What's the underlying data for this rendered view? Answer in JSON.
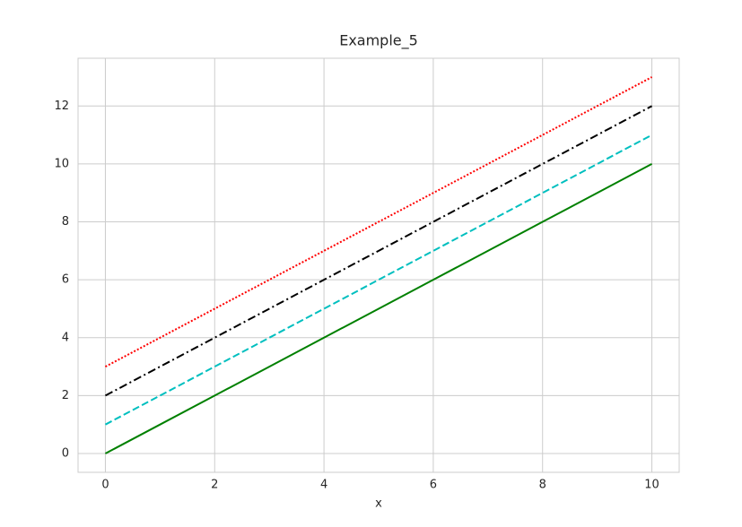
{
  "chart_data": {
    "type": "line",
    "title": "Example_5",
    "x_label": "x",
    "x": [
      0,
      1,
      2,
      3,
      4,
      5,
      6,
      7,
      8,
      9,
      10
    ],
    "series": [
      {
        "color": "#008000",
        "linestyle": "solid",
        "values": [
          0,
          1,
          2,
          3,
          4,
          5,
          6,
          7,
          8,
          9,
          10
        ]
      },
      {
        "color": "#00bfbf",
        "linestyle": "dashed",
        "values": [
          1,
          2,
          3,
          4,
          5,
          6,
          7,
          8,
          9,
          10,
          11
        ]
      },
      {
        "color": "#000000",
        "linestyle": "dashdot",
        "values": [
          2,
          3,
          4,
          5,
          6,
          7,
          8,
          9,
          10,
          11,
          12
        ]
      },
      {
        "color": "#ff0000",
        "linestyle": "dotted",
        "values": [
          3,
          4,
          5,
          6,
          7,
          8,
          9,
          10,
          11,
          12,
          13
        ]
      }
    ],
    "xlim": [
      -0.5,
      10.5
    ],
    "xticks": [
      0,
      2,
      4,
      6,
      8,
      10
    ],
    "ylim": [
      -0.65,
      13.65
    ],
    "yticks": [
      0,
      2,
      4,
      6,
      8,
      10,
      12
    ],
    "grid": true
  }
}
